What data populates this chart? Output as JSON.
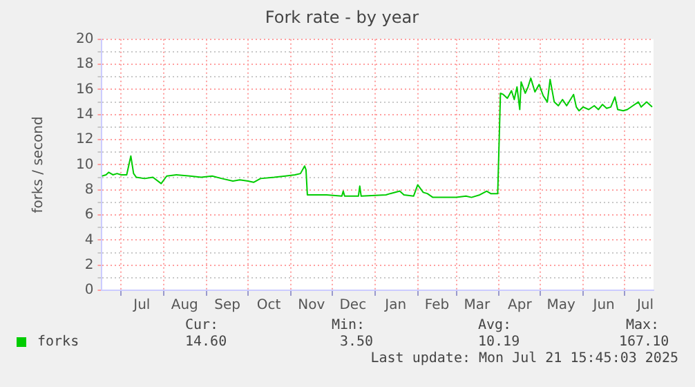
{
  "chart_data": {
    "type": "line",
    "title": "Fork rate - by year",
    "ylabel": "forks / second",
    "x": [
      "2024-06-17",
      "2024-06-20",
      "2024-06-22",
      "2024-06-25",
      "2024-06-28",
      "2024-07-01",
      "2024-07-05",
      "2024-07-08",
      "2024-07-10",
      "2024-07-12",
      "2024-07-18",
      "2024-07-24",
      "2024-07-30",
      "2024-08-03",
      "2024-08-10",
      "2024-08-20",
      "2024-08-28",
      "2024-09-05",
      "2024-09-12",
      "2024-09-20",
      "2024-09-25",
      "2024-10-01",
      "2024-10-05",
      "2024-10-10",
      "2024-10-20",
      "2024-10-28",
      "2024-11-04",
      "2024-11-08",
      "2024-11-11",
      "2024-11-12",
      "2024-11-13",
      "2024-11-27",
      "2024-12-08",
      "2024-12-09",
      "2024-12-10",
      "2024-12-20",
      "2024-12-21",
      "2024-12-22",
      "2025-01-09",
      "2025-01-12",
      "2025-01-19",
      "2025-01-22",
      "2025-01-29",
      "2025-02-01",
      "2025-02-05",
      "2025-02-08",
      "2025-02-12",
      "2025-02-20",
      "2025-03-01",
      "2025-03-08",
      "2025-03-12",
      "2025-03-18",
      "2025-03-23",
      "2025-03-26",
      "2025-03-31",
      "2025-04-02",
      "2025-04-04",
      "2025-04-07",
      "2025-04-10",
      "2025-04-12",
      "2025-04-14",
      "2025-04-16",
      "2025-04-17",
      "2025-04-20",
      "2025-04-22",
      "2025-04-24",
      "2025-04-27",
      "2025-04-30",
      "2025-05-03",
      "2025-05-06",
      "2025-05-08",
      "2025-05-11",
      "2025-05-14",
      "2025-05-17",
      "2025-05-20",
      "2025-05-25",
      "2025-05-27",
      "2025-05-29",
      "2025-06-01",
      "2025-06-05",
      "2025-06-09",
      "2025-06-12",
      "2025-06-15",
      "2025-06-18",
      "2025-06-21",
      "2025-06-24",
      "2025-06-26",
      "2025-06-30",
      "2025-07-03",
      "2025-07-07",
      "2025-07-11",
      "2025-07-13",
      "2025-07-17",
      "2025-07-21"
    ],
    "series": [
      {
        "name": "forks",
        "color": "#00cc00",
        "values": [
          9.1,
          9.2,
          9.4,
          9.2,
          9.3,
          9.2,
          9.2,
          10.7,
          9.3,
          9.0,
          8.9,
          9.0,
          8.5,
          9.1,
          9.2,
          9.1,
          9.0,
          9.1,
          8.9,
          8.7,
          8.8,
          8.7,
          8.6,
          8.9,
          9.0,
          9.1,
          9.2,
          9.3,
          9.9,
          9.6,
          7.6,
          7.6,
          7.5,
          7.9,
          7.5,
          7.5,
          8.3,
          7.5,
          7.6,
          7.7,
          7.9,
          7.6,
          7.5,
          8.4,
          7.8,
          7.7,
          7.4,
          7.4,
          7.4,
          7.5,
          7.4,
          7.6,
          7.9,
          7.7,
          7.7,
          15.7,
          15.6,
          15.3,
          15.9,
          15.2,
          16.2,
          14.4,
          16.6,
          15.7,
          16.2,
          16.9,
          15.8,
          16.4,
          15.5,
          15.0,
          16.8,
          15.0,
          14.7,
          15.2,
          14.7,
          15.6,
          14.6,
          14.3,
          14.6,
          14.4,
          14.7,
          14.4,
          14.8,
          14.5,
          14.6,
          15.4,
          14.4,
          14.3,
          14.4,
          14.7,
          15.0,
          14.6,
          15.0,
          14.6
        ]
      }
    ],
    "xlim": [
      "2024-06-17",
      "2025-07-22"
    ],
    "xticks": [
      {
        "value": "2024-07-01",
        "label": null
      },
      {
        "value": "2024-07-16",
        "label": "Jul"
      },
      {
        "value": "2024-08-01",
        "label": null
      },
      {
        "value": "2024-08-16",
        "label": "Aug"
      },
      {
        "value": "2024-09-01",
        "label": null
      },
      {
        "value": "2024-09-16",
        "label": "Sep"
      },
      {
        "value": "2024-10-01",
        "label": null
      },
      {
        "value": "2024-10-16",
        "label": "Oct"
      },
      {
        "value": "2024-11-01",
        "label": null
      },
      {
        "value": "2024-11-16",
        "label": "Nov"
      },
      {
        "value": "2024-12-01",
        "label": null
      },
      {
        "value": "2024-12-16",
        "label": "Dec"
      },
      {
        "value": "2025-01-01",
        "label": null
      },
      {
        "value": "2025-01-16",
        "label": "Jan"
      },
      {
        "value": "2025-02-01",
        "label": null
      },
      {
        "value": "2025-02-15",
        "label": "Feb"
      },
      {
        "value": "2025-03-01",
        "label": null
      },
      {
        "value": "2025-03-16",
        "label": "Mar"
      },
      {
        "value": "2025-04-01",
        "label": null
      },
      {
        "value": "2025-04-16",
        "label": "Apr"
      },
      {
        "value": "2025-05-01",
        "label": null
      },
      {
        "value": "2025-05-16",
        "label": "May"
      },
      {
        "value": "2025-06-01",
        "label": null
      },
      {
        "value": "2025-06-16",
        "label": "Jun"
      },
      {
        "value": "2025-07-01",
        "label": null
      },
      {
        "value": "2025-07-16",
        "label": "Jul"
      }
    ],
    "ylim": [
      0,
      20
    ],
    "yticks": [
      0,
      {
        "value": 1,
        "label": null
      },
      2,
      {
        "value": 3,
        "label": null
      },
      4,
      {
        "value": 5,
        "label": null
      },
      6,
      {
        "value": 7,
        "label": null
      },
      8,
      {
        "value": 9,
        "label": null
      },
      10,
      {
        "value": 11,
        "label": null
      },
      12,
      {
        "value": 13,
        "label": null
      },
      14,
      {
        "value": 15,
        "label": null
      },
      16,
      {
        "value": 17,
        "label": null
      },
      18,
      {
        "value": 19,
        "label": null
      },
      20
    ],
    "grid": true,
    "legend": "bottom left",
    "marker": "none",
    "line_style": "solid",
    "annotations": [
      "Cur:",
      "14.60",
      "Min:",
      "3.50",
      "Avg:",
      "10.19",
      "Max:",
      "167.10",
      "Last update: Mon Jul 21 15:45:03 2025"
    ]
  }
}
